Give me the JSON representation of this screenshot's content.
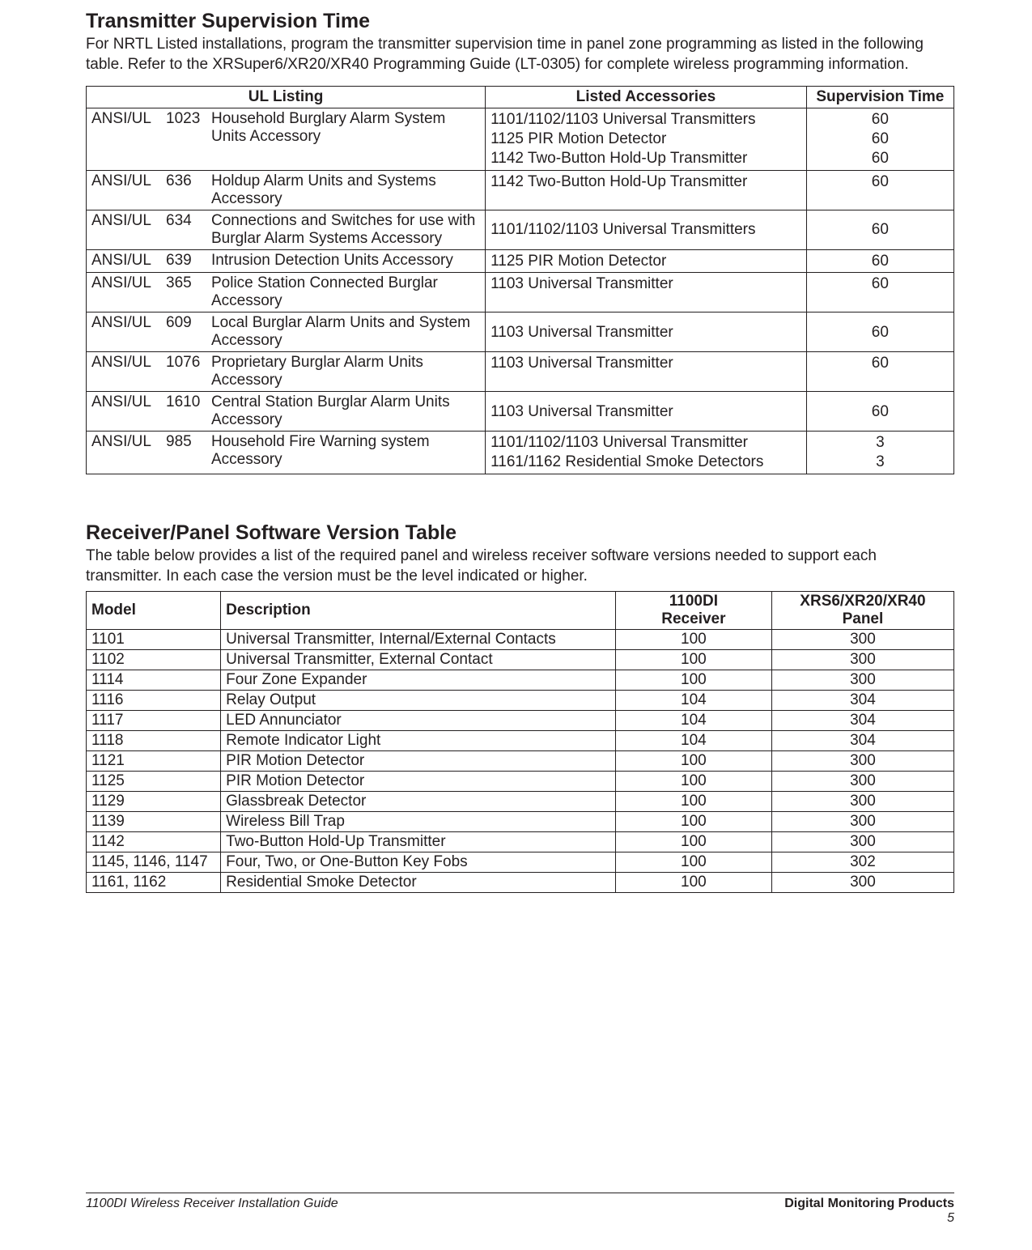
{
  "colors": {
    "text": "#231f20",
    "background": "#ffffff",
    "border": "#231f20"
  },
  "typography": {
    "body_font": "Verdana",
    "body_size_pt": 14,
    "heading_size_pt": 19,
    "heading_weight": 700
  },
  "section1": {
    "title": "Transmitter Supervision Time",
    "intro": "For NRTL Listed installations, program the transmitter supervision time in panel zone programming as listed in the following table.  Refer to the XRSuper6/XR20/XR40 Programming Guide (LT-0305) for complete wireless programming information.",
    "headers": {
      "col1": "UL Listing",
      "col2": "Listed Accessories",
      "col3": "Supervision Time"
    },
    "rows": [
      {
        "ul_prefix": "ANSI/UL",
        "ul_code": "1023",
        "ul_desc": "Household Burglary Alarm System Units Accessory",
        "acc": [
          "1101/1102/1103 Universal Transmitters",
          "1125 PIR Motion Detector",
          "1142 Two-Button Hold-Up Transmitter"
        ],
        "time": [
          "60",
          "60",
          "60"
        ]
      },
      {
        "ul_prefix": "ANSI/UL",
        "ul_code": "636",
        "ul_desc": "Holdup Alarm Units and Systems Accessory",
        "acc": [
          "1142 Two-Button Hold-Up Transmitter"
        ],
        "time": [
          "60"
        ]
      },
      {
        "ul_prefix": "ANSI/UL",
        "ul_code": "634",
        "ul_desc": "Connections and Switches for use with Burglar Alarm Systems Accessory",
        "wrap_desc": true,
        "acc": [
          "1101/1102/1103 Universal Transmitters"
        ],
        "time": [
          "60"
        ],
        "vmiddle": true
      },
      {
        "ul_prefix": "ANSI/UL",
        "ul_code": "639",
        "ul_desc": "Intrusion Detection Units Accessory",
        "acc": [
          "1125 PIR Motion Detector"
        ],
        "time": [
          "60"
        ]
      },
      {
        "ul_prefix": "ANSI/UL",
        "ul_code": "365",
        "ul_desc": "Police Station Connected Burglar Accessory",
        "acc": [
          "1103 Universal Transmitter"
        ],
        "time": [
          "60"
        ]
      },
      {
        "ul_prefix": "ANSI/UL",
        "ul_code": "609",
        "ul_desc": "Local Burglar Alarm Units and System Accessory",
        "wrap_desc": true,
        "acc": [
          "1103 Universal Transmitter"
        ],
        "time": [
          "60"
        ],
        "vmiddle": true
      },
      {
        "ul_prefix": "ANSI/UL",
        "ul_code": "1076",
        "ul_desc": "Proprietary Burglar Alarm Units Accessory",
        "acc": [
          "1103 Universal Transmitter"
        ],
        "time": [
          "60"
        ]
      },
      {
        "ul_prefix": "ANSI/UL",
        "ul_code": "1610",
        "ul_desc": "Central Station Burglar Alarm Units Accessory",
        "wrap_desc": true,
        "acc": [
          "1103 Universal Transmitter"
        ],
        "time": [
          "60"
        ],
        "vmiddle": true
      },
      {
        "ul_prefix": "ANSI/UL",
        "ul_code": "985",
        "ul_desc": "Household Fire Warning system Accessory",
        "acc": [
          "1101/1102/1103 Universal Transmitter",
          "1161/1162 Residential Smoke Detectors"
        ],
        "time": [
          "3",
          "3"
        ]
      }
    ]
  },
  "section2": {
    "title": "Receiver/Panel Software Version Table",
    "intro": "The table below provides a list of the required panel and wireless receiver software versions needed to support each transmitter.  In each case the version must be the level indicated or higher.",
    "headers": {
      "col1": "Model",
      "col2": "Description",
      "col3": "1100DI Receiver",
      "col4": "XRS6/XR20/XR40 Panel"
    },
    "rows": [
      {
        "model": "1101",
        "desc": "Universal Transmitter, Internal/External Contacts",
        "rec": "100",
        "panel": "300"
      },
      {
        "model": "1102",
        "desc": "Universal Transmitter, External Contact",
        "rec": "100",
        "panel": "300"
      },
      {
        "model": "1114",
        "desc": "Four Zone Expander",
        "rec": "100",
        "panel": "300"
      },
      {
        "model": "1116",
        "desc": "Relay Output",
        "rec": "104",
        "panel": "304"
      },
      {
        "model": "1117",
        "desc": "LED Annunciator",
        "rec": "104",
        "panel": "304"
      },
      {
        "model": "1118",
        "desc": "Remote Indicator Light",
        "rec": "104",
        "panel": "304"
      },
      {
        "model": "1121",
        "desc": "PIR Motion Detector",
        "rec": "100",
        "panel": "300"
      },
      {
        "model": "1125",
        "desc": "PIR Motion Detector",
        "rec": "100",
        "panel": "300"
      },
      {
        "model": "1129",
        "desc": "Glassbreak Detector",
        "rec": "100",
        "panel": "300"
      },
      {
        "model": "1139",
        "desc": "Wireless Bill Trap",
        "rec": "100",
        "panel": "300"
      },
      {
        "model": "1142",
        "desc": "Two-Button Hold-Up Transmitter",
        "rec": "100",
        "panel": "300"
      },
      {
        "model": "1145, 1146, 1147",
        "desc": "Four, Two, or One-Button Key Fobs",
        "rec": "100",
        "panel": "302"
      },
      {
        "model": "1161, 1162",
        "desc": "Residential Smoke Detector",
        "rec": "100",
        "panel": "300"
      }
    ]
  },
  "footer": {
    "left": "1100DI Wireless Receiver Installation Guide",
    "right": "Digital Monitoring Products",
    "page": "5"
  }
}
